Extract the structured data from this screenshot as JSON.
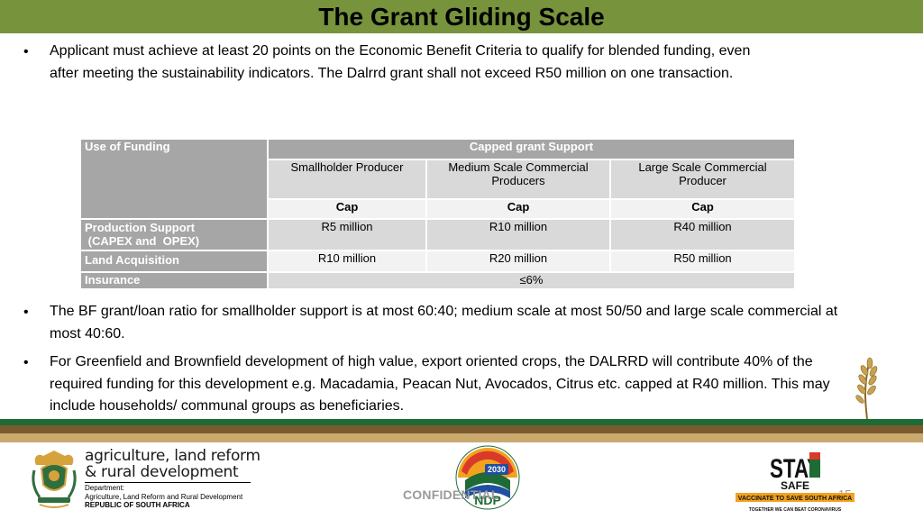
{
  "title": "The Grant Gliding Scale",
  "bullets_top": [
    {
      "line1": "Applicant must achieve at least 20 points on the Economic Benefit Criteria to qualify for blended funding, even",
      "line2": "after meeting the sustainability indicators. The Dalrrd grant shall not exceed R50 million on one transaction."
    }
  ],
  "table": {
    "use_of_funding": "Use of Funding",
    "capped_header": "Capped grant Support",
    "sub_headers": [
      "Smallholder Producer",
      "Medium Scale Commercial Producers",
      "Large Scale Commercial Producer"
    ],
    "cap_label": "Cap",
    "rows": [
      {
        "label_line1": "Production Support",
        "label_line2": " (CAPEX and  OPEX)",
        "values": [
          "R5 million",
          "R10 million",
          "R40 million"
        ]
      },
      {
        "label_line1": "Land Acquisition",
        "label_line2": "",
        "values": [
          "R10 million",
          "R20 million",
          "R50 million"
        ]
      }
    ],
    "insurance_label": "Insurance",
    "insurance_value": "≤6%"
  },
  "bullets_bottom": [
    {
      "line1": "The BF grant/loan ratio for smallholder support is at most 60:40; medium scale at most 50/50 and large scale commercial at",
      "line2": "most 40:60."
    },
    {
      "line1": "For Greenfield and Brownfield development of high value, export oriented crops, the DALRRD will contribute 40% of the",
      "line2": "required funding for this development e.g. Macadamia, Peacan Nut, Avocados, Citrus  etc. capped at R40 million.  This may",
      "line3": "include households/ communal groups as beneficiaries."
    }
  ],
  "footer": {
    "dept_line1": "agriculture, land reform",
    "dept_line2": "& rural development",
    "dept_sub1": "Department:",
    "dept_sub2": "Agriculture, Land Reform and Rural Development",
    "dept_sub3": "REPUBLIC OF SOUTH AFRICA",
    "confidential": "CONFIDENTIAL",
    "page_number": "15",
    "ndp_year": "2030",
    "ndp_text": "NDP",
    "stay_safe_line1": "STAY",
    "stay_safe_line2": "SAFE",
    "stay_safe_banner": "VACCINATE TO SAVE SOUTH AFRICA",
    "stay_safe_tagline": "TOGETHER WE CAN BEAT CORONAVIRUS"
  },
  "colors": {
    "title_bar": "#77933c",
    "stripe_green": "#1e6b35",
    "stripe_brown": "#7a5a2e",
    "stripe_tan": "#c9a96e",
    "table_header": "#a6a6a6",
    "table_mid": "#d9d9d9",
    "table_light": "#f2f2f2"
  },
  "icons": [
    "wheat-icon",
    "coat-of-arms-logo",
    "ndp-2030-logo",
    "stay-safe-logo"
  ]
}
